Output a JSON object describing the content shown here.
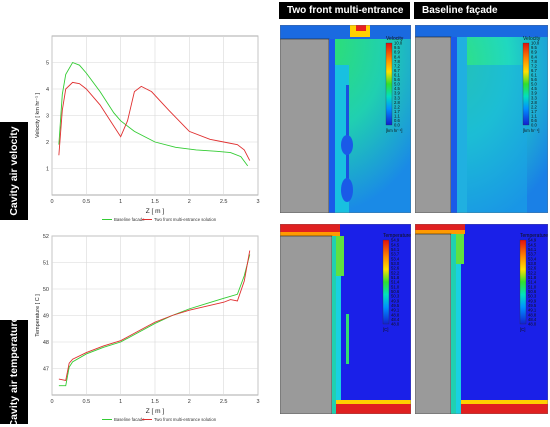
{
  "row_labels": [
    "Cavity air velocity",
    "Cavity air temperature"
  ],
  "column_headers": [
    "Two front multi-entrance",
    "Baseline façade"
  ],
  "colors": {
    "baseline": "#33cc33",
    "multi": "#e03030",
    "grid": "#d8d8d8",
    "wall": "#9a9a9a",
    "fluid_low": "#1a35e0"
  },
  "chart_data": [
    {
      "type": "line",
      "xlabel": "Z [ m ]",
      "ylabel": "Velocity [ km hr⁻¹ ]",
      "xlim": [
        0,
        3
      ],
      "ylim": [
        0,
        6
      ],
      "xticks": [
        0,
        0.5,
        1,
        1.5,
        2,
        2.5,
        3
      ],
      "yticks": [
        1,
        2,
        3,
        4,
        5
      ],
      "grid": true,
      "legend_position": "bottom",
      "series": [
        {
          "name": "Baseline facade",
          "color": "#33cc33",
          "x": [
            0.1,
            0.15,
            0.2,
            0.3,
            0.4,
            0.5,
            0.7,
            0.9,
            1.0,
            1.2,
            1.5,
            1.8,
            2.1,
            2.4,
            2.6,
            2.75,
            2.85
          ],
          "y": [
            1.9,
            3.8,
            4.55,
            5.0,
            4.9,
            4.6,
            3.9,
            3.1,
            2.8,
            2.4,
            2.0,
            1.8,
            1.7,
            1.65,
            1.6,
            1.45,
            1.1
          ]
        },
        {
          "name": "Two front multi-entrance solution",
          "color": "#e03030",
          "x": [
            0.1,
            0.15,
            0.2,
            0.3,
            0.4,
            0.5,
            0.7,
            0.9,
            1.0,
            1.1,
            1.2,
            1.3,
            1.45,
            1.7,
            2.0,
            2.3,
            2.5,
            2.7,
            2.8,
            2.88
          ],
          "y": [
            1.5,
            3.2,
            4.0,
            4.25,
            4.2,
            4.0,
            3.4,
            2.6,
            2.2,
            2.8,
            3.9,
            4.1,
            3.9,
            3.2,
            2.4,
            2.1,
            2.0,
            1.9,
            1.7,
            1.3
          ]
        }
      ]
    },
    {
      "type": "line",
      "xlabel": "Z [ m ]",
      "ylabel": "Temperature [ C ]",
      "xlim": [
        0,
        3
      ],
      "ylim": [
        46,
        52
      ],
      "xticks": [
        0,
        0.5,
        1,
        1.5,
        2,
        2.5,
        3
      ],
      "yticks": [
        47,
        48,
        49,
        50,
        51,
        52
      ],
      "grid": true,
      "legend_position": "bottom",
      "series": [
        {
          "name": "Baseline facade",
          "color": "#33cc33",
          "x": [
            0.1,
            0.2,
            0.25,
            0.3,
            0.5,
            0.75,
            1.0,
            1.25,
            1.5,
            1.75,
            2.0,
            2.25,
            2.5,
            2.7,
            2.8,
            2.88
          ],
          "y": [
            46.35,
            46.35,
            47.05,
            47.25,
            47.55,
            47.8,
            48.0,
            48.35,
            48.7,
            49.0,
            49.25,
            49.45,
            49.65,
            49.8,
            50.5,
            51.3
          ]
        },
        {
          "name": "Two front multi-entrance solution",
          "color": "#e03030",
          "x": [
            0.1,
            0.2,
            0.25,
            0.3,
            0.5,
            0.75,
            1.0,
            1.25,
            1.5,
            1.75,
            2.0,
            2.25,
            2.5,
            2.6,
            2.7,
            2.8,
            2.88
          ],
          "y": [
            46.6,
            46.55,
            47.2,
            47.35,
            47.6,
            47.85,
            48.05,
            48.4,
            48.75,
            49.0,
            49.2,
            49.35,
            49.5,
            49.6,
            49.55,
            50.3,
            51.45
          ]
        }
      ]
    }
  ],
  "contour_legends": [
    {
      "title": "Velocity",
      "values": [
        "10.0",
        "9.5",
        "8.9",
        "8.4",
        "7.8",
        "7.2",
        "6.7",
        "6.1",
        "5.6",
        "5.0",
        "4.5",
        "3.9",
        "3.3",
        "2.8",
        "2.2",
        "1.7",
        "1.1",
        "0.6",
        "0.0"
      ],
      "unit": "[km hr⁻¹]"
    },
    {
      "title": "Temperature",
      "values": [
        "54.9",
        "54.5",
        "54.1",
        "53.7",
        "53.4",
        "53.0",
        "52.6",
        "52.2",
        "51.8",
        "51.4",
        "51.0",
        "50.6",
        "50.3",
        "49.9",
        "49.5",
        "49.1",
        "48.8",
        "48.4",
        "48.0"
      ],
      "unit": "[C]"
    }
  ]
}
